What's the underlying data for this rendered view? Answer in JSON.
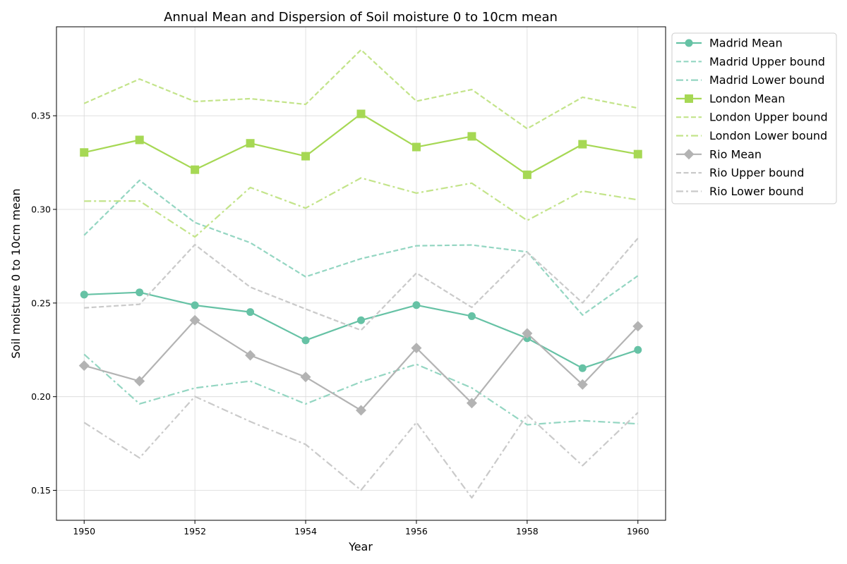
{
  "chart_data": {
    "type": "line",
    "title": "Annual Mean and Dispersion of Soil moisture 0 to 10cm mean",
    "xlabel": "Year",
    "ylabel": "Soil moisture 0 to 10cm mean",
    "xlim": [
      1949.5,
      1960.5
    ],
    "ylim": [
      0.134,
      0.3975
    ],
    "xticks": [
      "1950",
      "1952",
      "1954",
      "1956",
      "1958",
      "1960"
    ],
    "yticks": [
      "0.15",
      "0.20",
      "0.25",
      "0.30",
      "0.35"
    ],
    "grid": true,
    "legend_position": "outside-top-right",
    "x": [
      1950,
      1951,
      1952,
      1953,
      1954,
      1955,
      1956,
      1957,
      1958,
      1959,
      1960
    ],
    "series": [
      {
        "name": "Madrid Mean",
        "style": "solid",
        "marker": "circle",
        "color": "#66c2a5",
        "values": [
          0.2545,
          0.2557,
          0.2488,
          0.2452,
          0.2301,
          0.2408,
          0.2489,
          0.243,
          0.2312,
          0.2152,
          0.225
        ]
      },
      {
        "name": "Madrid Upper bound",
        "style": "dashed",
        "marker": "none",
        "color": "#94d6c2",
        "values": [
          0.2862,
          0.3155,
          0.293,
          0.2822,
          0.264,
          0.2737,
          0.2806,
          0.281,
          0.2773,
          0.2436,
          0.2646
        ]
      },
      {
        "name": "Madrid Lower bound",
        "style": "dashdot",
        "marker": "none",
        "color": "#94d6c2",
        "values": [
          0.2226,
          0.1962,
          0.2046,
          0.2083,
          0.1961,
          0.2079,
          0.2173,
          0.2047,
          0.185,
          0.1872,
          0.1855
        ]
      },
      {
        "name": "London Mean",
        "style": "solid",
        "marker": "square",
        "color": "#a6d854",
        "values": [
          0.3304,
          0.3371,
          0.3212,
          0.3353,
          0.3284,
          0.351,
          0.3333,
          0.339,
          0.3185,
          0.3348,
          0.3295
        ]
      },
      {
        "name": "London Upper bound",
        "style": "dashed",
        "marker": "none",
        "color": "#c3e48a",
        "values": [
          0.3566,
          0.3696,
          0.3576,
          0.3591,
          0.3561,
          0.3852,
          0.3578,
          0.364,
          0.3431,
          0.3599,
          0.3541
        ]
      },
      {
        "name": "London Lower bound",
        "style": "dashdot",
        "marker": "none",
        "color": "#c3e48a",
        "values": [
          0.3044,
          0.3045,
          0.2853,
          0.3117,
          0.3007,
          0.3168,
          0.3087,
          0.314,
          0.2941,
          0.3098,
          0.3051
        ]
      },
      {
        "name": "Rio Mean",
        "style": "solid",
        "marker": "diamond",
        "color": "#b3b3b3",
        "values": [
          0.2166,
          0.2083,
          0.2408,
          0.2221,
          0.2105,
          0.1927,
          0.226,
          0.1966,
          0.2338,
          0.2065,
          0.2376
        ]
      },
      {
        "name": "Rio Upper bound",
        "style": "dashed",
        "marker": "none",
        "color": "#cacaca",
        "values": [
          0.2474,
          0.2493,
          0.2812,
          0.2585,
          0.2468,
          0.2355,
          0.266,
          0.2477,
          0.2772,
          0.2501,
          0.2846
        ]
      },
      {
        "name": "Rio Lower bound",
        "style": "dashdot",
        "marker": "none",
        "color": "#cacaca",
        "values": [
          0.1862,
          0.1673,
          0.2001,
          0.1867,
          0.1745,
          0.1501,
          0.1863,
          0.146,
          0.1904,
          0.1632,
          0.1915
        ]
      }
    ]
  }
}
